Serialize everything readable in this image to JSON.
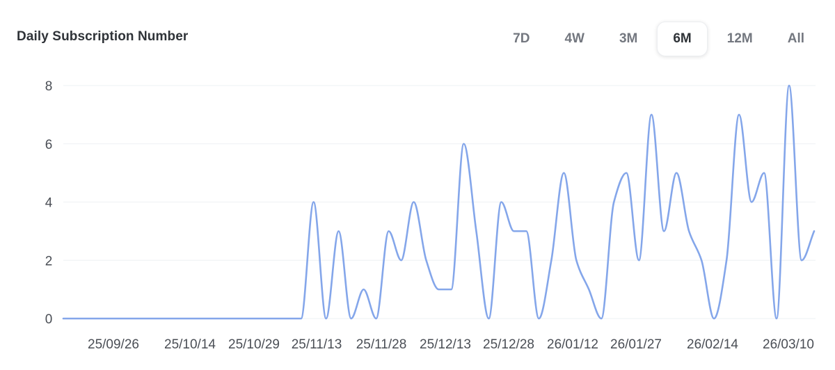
{
  "header": {
    "title": "Daily Subscription Number",
    "tabs": [
      {
        "label": "7D",
        "active": false
      },
      {
        "label": "4W",
        "active": false
      },
      {
        "label": "3M",
        "active": false
      },
      {
        "label": "6M",
        "active": true
      },
      {
        "label": "12M",
        "active": false
      },
      {
        "label": "All",
        "active": false
      }
    ]
  },
  "colors": {
    "line": "#84a6ea",
    "grid": "#eef0f3",
    "tick_text": "#4a4e55"
  },
  "chart_data": {
    "type": "line",
    "title": "Daily Subscription Number",
    "xlabel": "",
    "ylabel": "",
    "ylim": [
      0,
      8
    ],
    "yticks": [
      0,
      2,
      4,
      6,
      8
    ],
    "grid": true,
    "xtick_labels": [
      "25/09/26",
      "25/10/14",
      "25/10/29",
      "25/11/13",
      "25/11/28",
      "25/12/13",
      "25/12/28",
      "26/01/12",
      "26/01/27",
      "26/02/14",
      "26/03/10"
    ],
    "series": [
      {
        "values": [
          [
            0,
            0
          ],
          [
            9,
            0
          ],
          [
            18,
            0
          ],
          [
            27,
            0
          ],
          [
            36,
            0
          ],
          [
            45,
            0
          ],
          [
            54,
            0
          ],
          [
            63,
            0
          ],
          [
            72,
            0
          ],
          [
            81,
            0
          ],
          [
            90,
            0
          ],
          [
            99,
            0
          ],
          [
            108,
            0
          ],
          [
            117,
            0
          ],
          [
            126,
            0
          ],
          [
            135,
            0
          ],
          [
            144,
            0
          ],
          [
            153,
            0
          ],
          [
            162,
            0
          ],
          [
            171,
            0
          ],
          [
            180,
            4
          ],
          [
            189,
            0
          ],
          [
            198,
            3
          ],
          [
            207,
            0
          ],
          [
            216,
            1
          ],
          [
            225,
            0
          ],
          [
            234,
            3
          ],
          [
            243,
            2
          ],
          [
            252,
            4
          ],
          [
            261,
            2
          ],
          [
            270,
            1
          ],
          [
            279,
            1
          ],
          [
            288,
            6
          ],
          [
            297,
            3
          ],
          [
            306,
            0
          ],
          [
            315,
            4
          ],
          [
            324,
            3
          ],
          [
            333,
            3
          ],
          [
            342,
            0
          ],
          [
            351,
            2
          ],
          [
            360,
            5
          ],
          [
            369,
            2
          ],
          [
            378,
            1
          ],
          [
            387,
            0
          ],
          [
            396,
            4
          ],
          [
            405,
            5
          ],
          [
            414,
            2
          ],
          [
            423,
            7
          ],
          [
            432,
            3
          ],
          [
            441,
            5
          ],
          [
            450,
            3
          ],
          [
            459,
            2
          ],
          [
            468,
            0
          ],
          [
            477,
            2
          ],
          [
            486,
            7
          ],
          [
            495,
            4
          ],
          [
            504,
            5
          ],
          [
            513,
            0
          ],
          [
            522,
            8
          ],
          [
            531,
            2
          ],
          [
            540,
            3
          ]
        ]
      }
    ]
  }
}
